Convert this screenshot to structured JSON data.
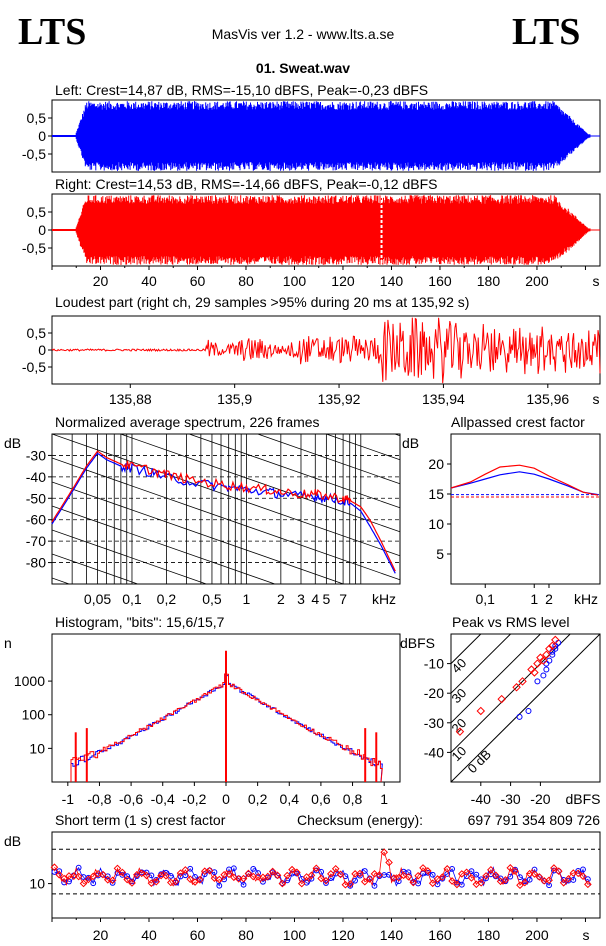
{
  "header": {
    "logo_left": "LTS",
    "logo_right": "LTS",
    "app_title": "MasVis ver 1.2 - www.lts.a.se",
    "file_title": "01. Sweat.wav"
  },
  "colors": {
    "left": "#0000ff",
    "right": "#ff0000",
    "grid": "#000000"
  },
  "chart_data": [
    {
      "id": "left-waveform",
      "type": "area",
      "title": "Left: Crest=14,87 dB, RMS=-15,10 dBFS, Peak=-0,23 dBFS",
      "yticks": [
        "0,5",
        "0",
        "-0,5"
      ],
      "ylim": [
        -1,
        1
      ],
      "xlim": [
        0,
        226
      ],
      "signal_start_s": 10,
      "signal_end_s": 222,
      "envelope_level": 0.97
    },
    {
      "id": "right-waveform",
      "type": "area",
      "title": "Right: Crest=14,53 dB, RMS=-14,66 dBFS, Peak=-0,12 dBFS",
      "yticks": [
        "0,5",
        "0",
        "-0,5"
      ],
      "ylim": [
        -1,
        1
      ],
      "xlim": [
        0,
        226
      ],
      "xticks": [
        "20",
        "40",
        "60",
        "80",
        "100",
        "120",
        "140",
        "160",
        "180",
        "200"
      ],
      "xunit": "s",
      "signal_start_s": 10,
      "signal_end_s": 222,
      "dropout_s": 135.9
    },
    {
      "id": "loudest-part",
      "type": "line",
      "title": "Loudest part (right ch, 29 samples >95% during 20 ms at 135,92 s)",
      "yticks": [
        "0,5",
        "0",
        "-0,5"
      ],
      "xticks": [
        "135,88",
        "135,9",
        "135,92",
        "135,94",
        "135,96"
      ],
      "xunit": "s",
      "xlim": [
        135.865,
        135.97
      ],
      "ylim": [
        -1,
        1
      ]
    },
    {
      "id": "spectrum",
      "type": "line",
      "title": "Normalized average spectrum, 226 frames",
      "ylabel": "dB",
      "yticks": [
        "-30",
        "-40",
        "-50",
        "-60",
        "-70",
        "-80"
      ],
      "ylim": [
        -90,
        -20
      ],
      "xticks": [
        "0,05",
        "0,1",
        "0,2",
        "0,5",
        "1",
        "2",
        "3",
        "4",
        "5",
        "7"
      ],
      "xunit": "kHz",
      "xlim_khz": [
        0.02,
        22
      ],
      "series": [
        {
          "name": "left",
          "x_khz": [
            0.02,
            0.03,
            0.04,
            0.05,
            0.06,
            0.08,
            0.1,
            0.15,
            0.2,
            0.3,
            0.5,
            0.7,
            1,
            1.5,
            2,
            3,
            4,
            5,
            7,
            8,
            10,
            12,
            15,
            20
          ],
          "db": [
            -62,
            -47,
            -36,
            -29,
            -32,
            -35,
            -36,
            -38,
            -40,
            -42,
            -44,
            -45,
            -46,
            -47,
            -48,
            -49,
            -49,
            -50,
            -51,
            -52,
            -56,
            -63,
            -72,
            -85
          ]
        },
        {
          "name": "right",
          "x_khz": [
            0.02,
            0.03,
            0.04,
            0.05,
            0.06,
            0.08,
            0.1,
            0.15,
            0.2,
            0.3,
            0.5,
            0.7,
            1,
            1.5,
            2,
            3,
            4,
            5,
            7,
            8,
            10,
            12,
            15,
            20
          ],
          "db": [
            -61,
            -46,
            -35,
            -28,
            -31,
            -34,
            -35,
            -37,
            -39,
            -41,
            -43,
            -44,
            -45,
            -46,
            -47,
            -48,
            -48,
            -49,
            -50,
            -51,
            -54,
            -60,
            -70,
            -84
          ]
        }
      ]
    },
    {
      "id": "allpassed-crest",
      "type": "line",
      "title": "Allpassed crest factor",
      "ylabel": "dB",
      "yticks": [
        "20",
        "15",
        "10",
        "5"
      ],
      "ylim": [
        0,
        25
      ],
      "xticks": [
        "0,1",
        "1",
        "2"
      ],
      "xunit": "kHz",
      "series": [
        {
          "name": "left",
          "x_khz": [
            0.02,
            0.05,
            0.1,
            0.2,
            0.5,
            1,
            2,
            5,
            10,
            20
          ],
          "db": [
            16,
            16.8,
            17.5,
            18.2,
            18.7,
            18.3,
            17.5,
            16.3,
            15.3,
            14.9
          ]
        },
        {
          "name": "right",
          "x_khz": [
            0.02,
            0.05,
            0.1,
            0.2,
            0.5,
            1,
            2,
            5,
            10,
            20
          ],
          "db": [
            16,
            17,
            18.3,
            19.5,
            19.8,
            19.3,
            18,
            16.5,
            15.3,
            14.8
          ]
        }
      ],
      "reference_left": 14.9,
      "reference_right": 14.5
    },
    {
      "id": "histogram",
      "type": "bar",
      "title": "Histogram, \"bits\": 15,6/15,7",
      "ylabel": "n",
      "yticks": [
        "1000",
        "100",
        "10"
      ],
      "xticks": [
        "-1",
        "-0,8",
        "-0,6",
        "-0,4",
        "-0,2",
        "0",
        "0,2",
        "0,4",
        "0,6",
        "0,8",
        "1"
      ],
      "xlim": [
        -1.1,
        1.1
      ],
      "scale": "log"
    },
    {
      "id": "peak-vs-rms",
      "type": "scatter",
      "title": "Peak vs RMS level",
      "ylabel": "dBFS",
      "xlabel": "dBFS",
      "yticks": [
        "-10",
        "-20",
        "-30",
        "-40"
      ],
      "xticks": [
        "-40",
        "-30",
        "-20"
      ],
      "crest_lines": [
        "40",
        "30",
        "20",
        "10",
        "0 dB"
      ],
      "xlim": [
        -50,
        0
      ],
      "ylim": [
        -50,
        0
      ],
      "series": [
        {
          "name": "left",
          "points": [
            [
              -27,
              -28
            ],
            [
              -24,
              -26
            ],
            [
              -21,
              -16
            ],
            [
              -19,
              -14
            ],
            [
              -18,
              -12
            ],
            [
              -17,
              -9
            ],
            [
              -16,
              -7
            ],
            [
              -15,
              -5
            ],
            [
              -14,
              -3
            ],
            [
              -15,
              -4
            ],
            [
              -16,
              -6
            ],
            [
              -18,
              -10
            ]
          ]
        },
        {
          "name": "right",
          "points": [
            [
              -47,
              -33
            ],
            [
              -40,
              -26
            ],
            [
              -33,
              -22
            ],
            [
              -28,
              -18
            ],
            [
              -26,
              -16
            ],
            [
              -23,
              -12
            ],
            [
              -21,
              -10
            ],
            [
              -20,
              -8
            ],
            [
              -18,
              -7
            ],
            [
              -17,
              -5
            ],
            [
              -16,
              -4
            ],
            [
              -15,
              -2
            ],
            [
              -19,
              -9
            ],
            [
              -22,
              -13
            ]
          ]
        }
      ]
    },
    {
      "id": "short-term-crest",
      "type": "scatter",
      "title": "Short term (1 s) crest factor",
      "checksum_label": "Checksum (energy):",
      "checksum_value": "697 791 354 809 726",
      "ylabel": "dB",
      "yticks": [
        "10"
      ],
      "ylim": [
        0,
        25
      ],
      "xlim": [
        0,
        226
      ],
      "xticks": [
        "20",
        "40",
        "60",
        "80",
        "100",
        "120",
        "140",
        "160",
        "180",
        "200"
      ],
      "xunit": "s"
    }
  ]
}
